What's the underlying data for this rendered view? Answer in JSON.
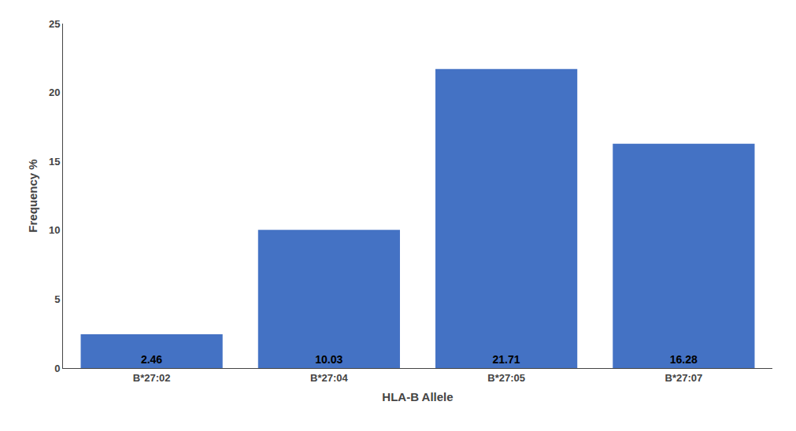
{
  "chart_data": {
    "type": "bar",
    "categories": [
      "B*27:02",
      "B*27:04",
      "B*27:05",
      "B*27:07"
    ],
    "values": [
      2.46,
      10.03,
      21.71,
      16.28
    ],
    "color": "#4472C4",
    "xlabel": "HLA-B Allele",
    "ylabel": "Frequency %",
    "ylim": [
      0,
      25
    ],
    "yticks": [
      0,
      5,
      10,
      15,
      20,
      25
    ],
    "grid": false,
    "data_labels": true
  }
}
